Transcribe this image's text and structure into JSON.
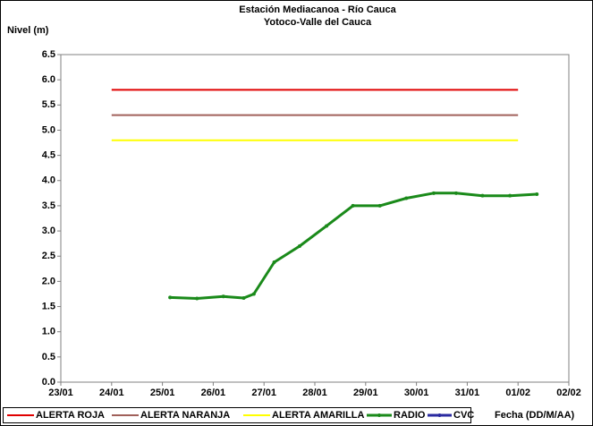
{
  "chart_data": {
    "type": "line",
    "title": "Estación Mediacanoa - Río Cauca",
    "subtitle": "Yotoco-Valle del Cauca",
    "ylabel": "Nivel (m)",
    "xlabel": "Fecha (DD/M/AA)",
    "xlim": [
      23,
      33
    ],
    "xticks": [
      {
        "value": 23,
        "label": "23/01"
      },
      {
        "value": 24,
        "label": "24/01"
      },
      {
        "value": 25,
        "label": "25/01"
      },
      {
        "value": 26,
        "label": "26/01"
      },
      {
        "value": 27,
        "label": "27/01"
      },
      {
        "value": 28,
        "label": "28/01"
      },
      {
        "value": 29,
        "label": "29/01"
      },
      {
        "value": 30,
        "label": "30/01"
      },
      {
        "value": 31,
        "label": "31/01"
      },
      {
        "value": 32,
        "label": "01/02"
      },
      {
        "value": 33,
        "label": "02/02"
      }
    ],
    "ylim": [
      0,
      6.5
    ],
    "yticks": [
      {
        "value": 0,
        "label": "0.0"
      },
      {
        "value": 0.5,
        "label": "0.5"
      },
      {
        "value": 1,
        "label": "1.0"
      },
      {
        "value": 1.5,
        "label": "1.5"
      },
      {
        "value": 2,
        "label": "2.0"
      },
      {
        "value": 2.5,
        "label": "2.5"
      },
      {
        "value": 3,
        "label": "3.0"
      },
      {
        "value": 3.5,
        "label": "3.5"
      },
      {
        "value": 4,
        "label": "4.0"
      },
      {
        "value": 4.5,
        "label": "4.5"
      },
      {
        "value": 5,
        "label": "5.0"
      },
      {
        "value": 5.5,
        "label": "5.5"
      },
      {
        "value": 6,
        "label": "6.0"
      },
      {
        "value": 6.5,
        "label": "6.5"
      }
    ],
    "grid": false,
    "legend": "bottom",
    "series": [
      {
        "name": "ALERTA ROJA",
        "color": "#e00000",
        "markers": false,
        "x": [
          24,
          32
        ],
        "values": [
          5.8,
          5.8
        ]
      },
      {
        "name": "ALERTA NARANJA",
        "color": "#a0605a",
        "markers": false,
        "x": [
          24,
          32
        ],
        "values": [
          5.3,
          5.3
        ]
      },
      {
        "name": "ALERTA AMARILLA",
        "color": "#ffff00",
        "markers": false,
        "x": [
          24,
          32
        ],
        "values": [
          4.8,
          4.8
        ]
      },
      {
        "name": "RADIO",
        "color": "#1a8a1a",
        "markers": true,
        "x": [
          25.15,
          25.68,
          26.2,
          26.6,
          26.8,
          27.2,
          27.7,
          28.23,
          28.75,
          29.28,
          29.8,
          30.34,
          30.78,
          31.3,
          31.84,
          32.37
        ],
        "values": [
          1.68,
          1.66,
          1.7,
          1.67,
          1.75,
          2.38,
          2.7,
          3.1,
          3.5,
          3.5,
          3.65,
          3.75,
          3.75,
          3.7,
          3.7,
          3.73
        ]
      },
      {
        "name": "CVC",
        "color": "#2a2aa0",
        "markers": true,
        "x": [],
        "values": []
      }
    ]
  }
}
